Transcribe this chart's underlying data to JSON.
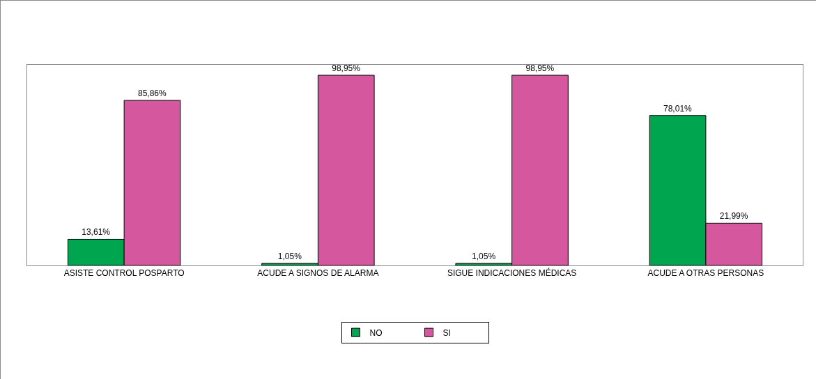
{
  "chart_data": {
    "type": "bar",
    "categories": [
      "ASISTE CONTROL POSPARTO",
      "ACUDE A SIGNOS DE ALARMA",
      "SIGUE INDICACIONES MÉDICAS",
      "ACUDE A OTRAS PERSONAS"
    ],
    "series": [
      {
        "name": "NO",
        "color": "#00a550",
        "values": [
          13.61,
          1.05,
          1.05,
          78.01
        ],
        "value_labels": [
          "13,61%",
          "1,05%",
          "1,05%",
          "78,01%"
        ]
      },
      {
        "name": "SI",
        "color": "#d5579e",
        "values": [
          85.86,
          98.95,
          98.95,
          21.99
        ],
        "value_labels": [
          "85,86%",
          "98,95%",
          "98,95%",
          "21,99%"
        ]
      }
    ],
    "legend": "bottom",
    "grid": false
  }
}
